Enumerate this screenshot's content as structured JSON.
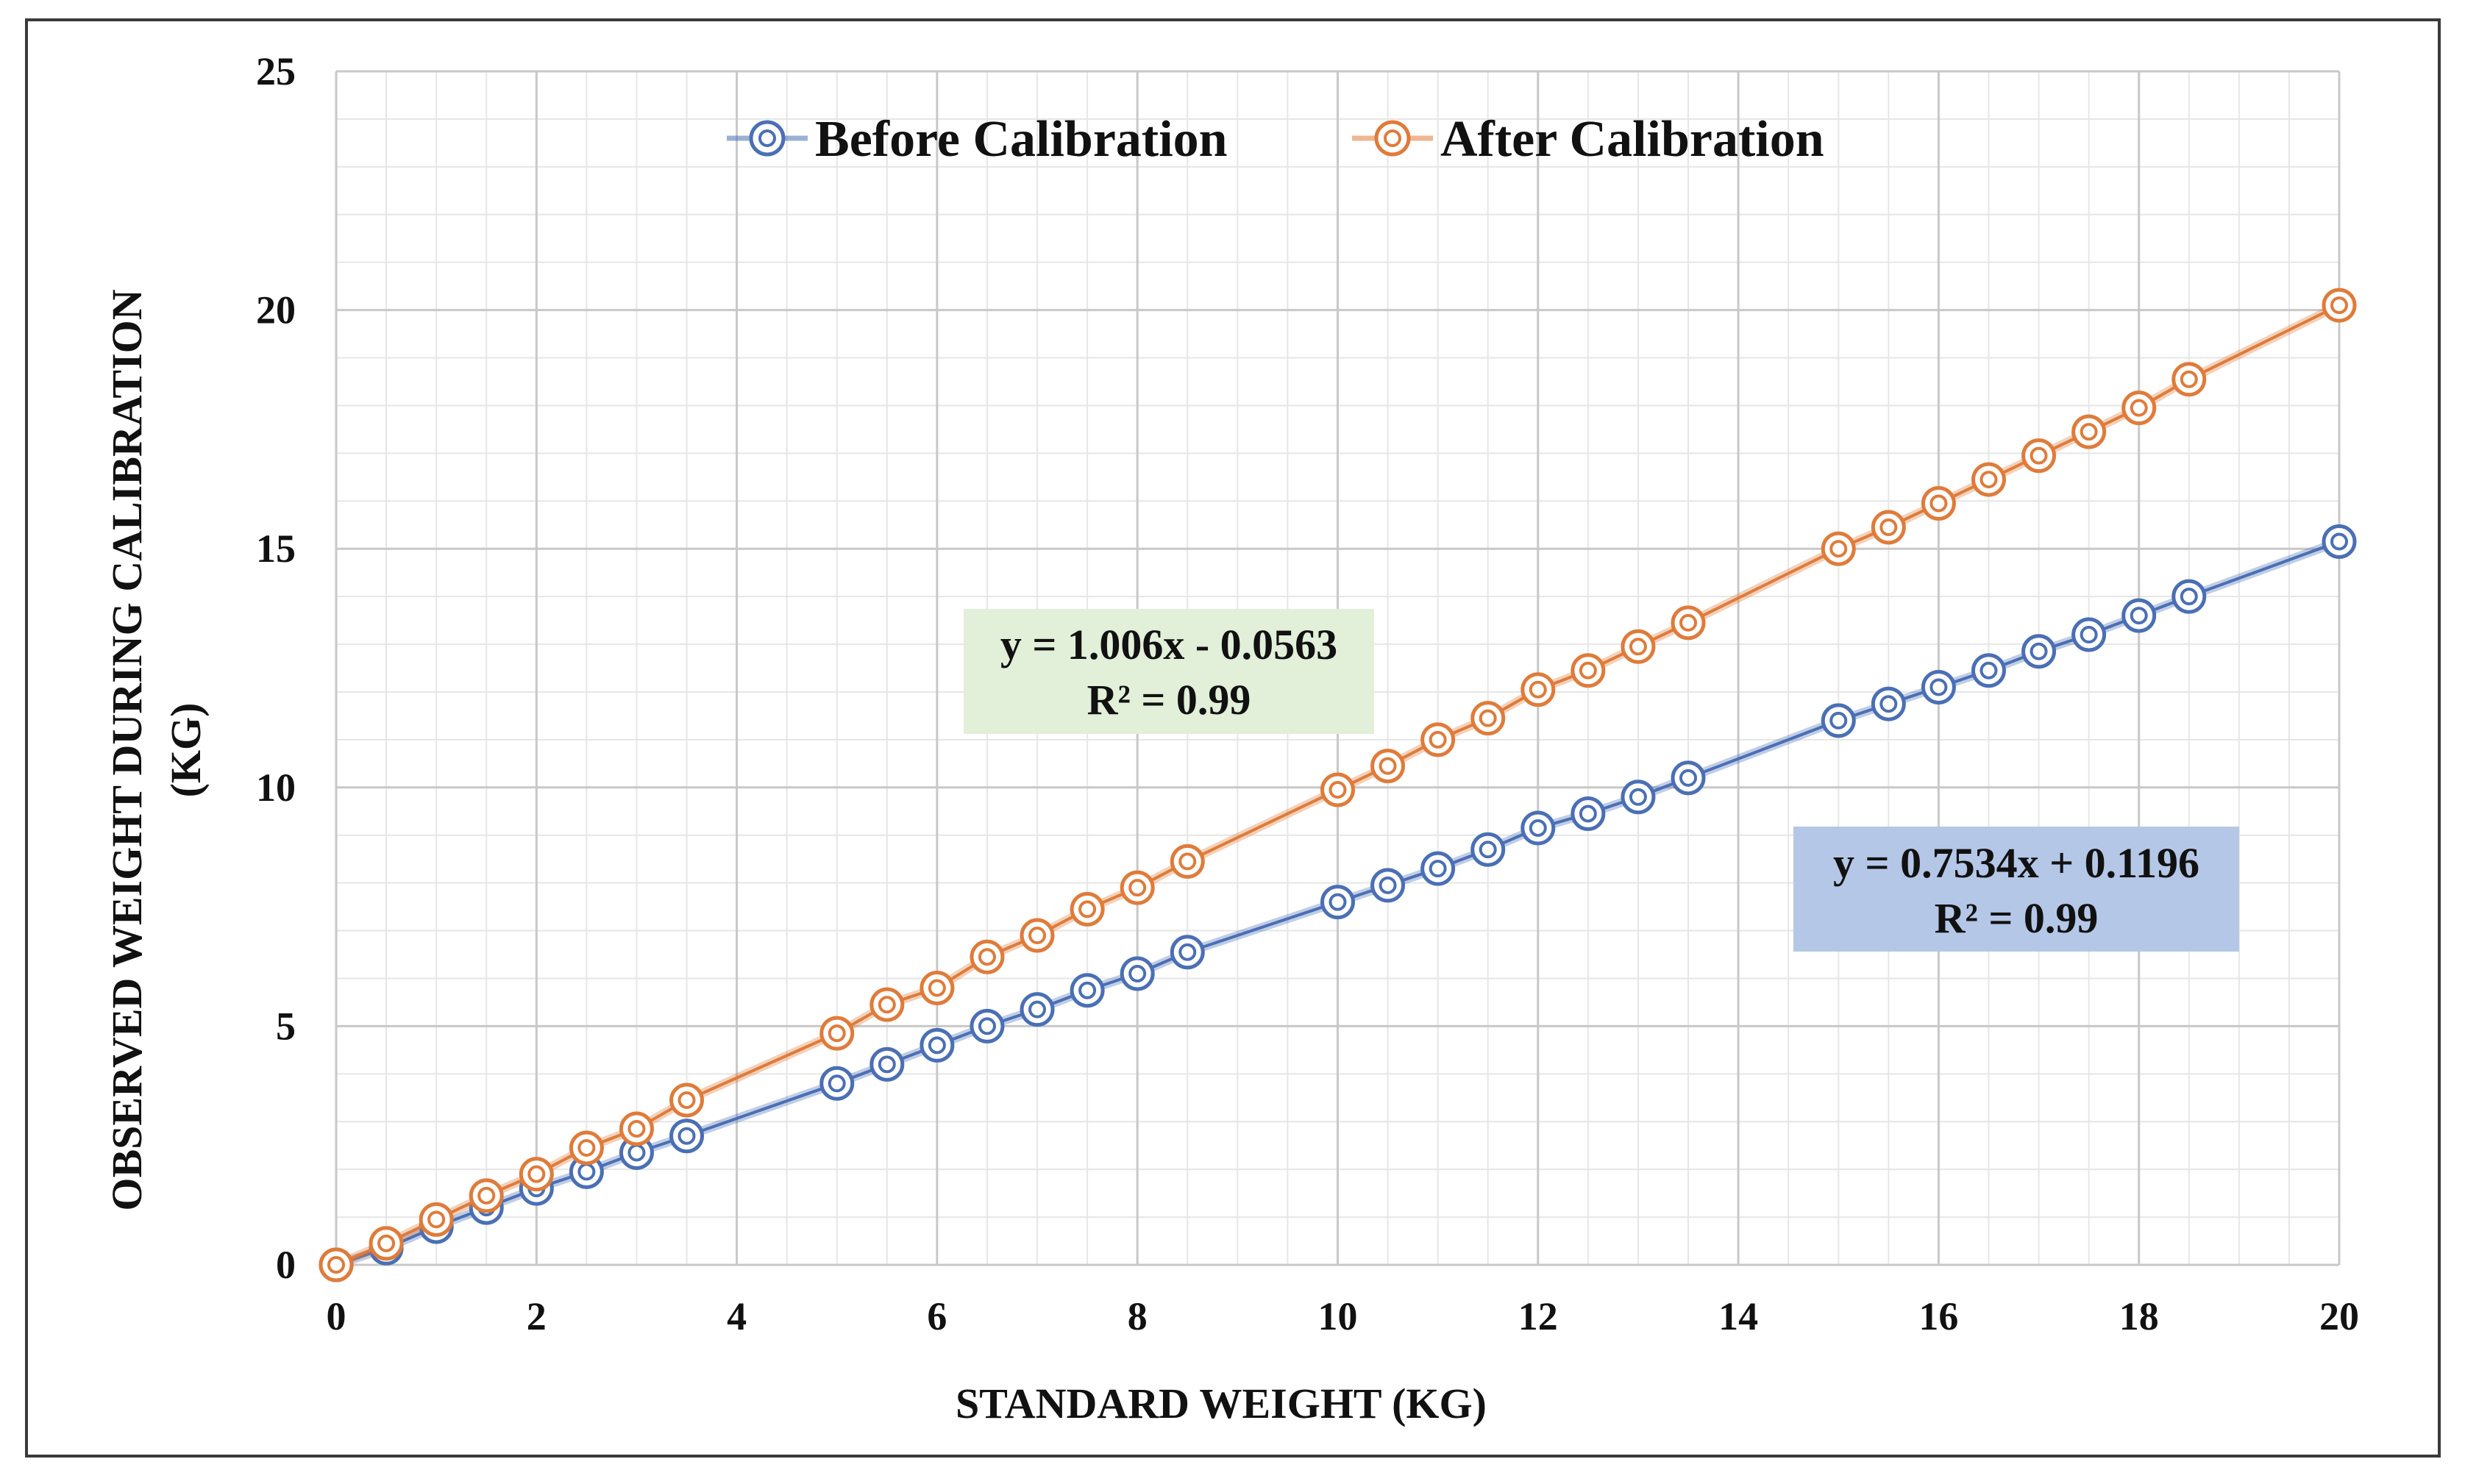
{
  "chart_data": {
    "type": "scatter",
    "xlabel": "STANDARD WEIGHT  (KG)",
    "ylabel_lines": [
      "OBSERVED WEIGHT  DURING CALIBRATION",
      "(KG)"
    ],
    "xlim": [
      0,
      20
    ],
    "ylim": [
      0,
      25
    ],
    "x_ticks": [
      0,
      2,
      4,
      6,
      8,
      10,
      12,
      14,
      16,
      18,
      20
    ],
    "y_ticks": [
      0,
      5,
      10,
      15,
      20,
      25
    ],
    "x_minor_step": 0.5,
    "y_minor_step": 1,
    "grid": true,
    "legend_position": "top-center",
    "series": [
      {
        "name": "Before Calibration",
        "color": "#4a6fb5",
        "x": [
          0,
          0.5,
          1,
          1.5,
          2,
          2.5,
          3,
          3.5,
          5,
          5.5,
          6,
          6.5,
          7,
          7.5,
          8,
          8.5,
          10,
          10.5,
          11,
          11.5,
          12,
          12.5,
          13,
          13.5,
          15,
          15.5,
          16,
          16.5,
          17,
          17.5,
          18,
          18.5,
          20
        ],
        "y": [
          0,
          0.35,
          0.8,
          1.2,
          1.6,
          1.95,
          2.35,
          2.7,
          3.8,
          4.2,
          4.6,
          5.0,
          5.35,
          5.75,
          6.1,
          6.55,
          7.6,
          7.95,
          8.3,
          8.7,
          9.15,
          9.45,
          9.8,
          10.2,
          11.4,
          11.75,
          12.1,
          12.45,
          12.85,
          13.2,
          13.6,
          14.0,
          15.15
        ]
      },
      {
        "name": "After Calibration",
        "color": "#e07b39",
        "x": [
          0,
          0.5,
          1,
          1.5,
          2,
          2.5,
          3,
          3.5,
          5,
          5.5,
          6,
          6.5,
          7,
          7.5,
          8,
          8.5,
          10,
          10.5,
          11,
          11.5,
          12,
          12.5,
          13,
          13.5,
          15,
          15.5,
          16,
          16.5,
          17,
          17.5,
          18,
          18.5,
          20
        ],
        "y": [
          0,
          0.45,
          0.95,
          1.45,
          1.9,
          2.45,
          2.85,
          3.45,
          4.85,
          5.45,
          5.8,
          6.45,
          6.9,
          7.45,
          7.9,
          8.45,
          9.95,
          10.45,
          11.0,
          11.45,
          12.05,
          12.45,
          12.95,
          13.45,
          15.0,
          15.45,
          15.95,
          16.45,
          16.95,
          17.45,
          17.95,
          18.55,
          20.1
        ]
      }
    ],
    "annotations": [
      {
        "name": "after-equation",
        "lines": [
          "y = 1.006x - 0.0563",
          "R² = 0.99"
        ],
        "background": "#e2efd9"
      },
      {
        "name": "before-equation",
        "lines": [
          "y = 0.7534x + 0.1196",
          "R² = 0.99"
        ],
        "background": "#b4c7e7"
      }
    ],
    "colors": {
      "major_grid": "#c8c8c8",
      "minor_grid": "#e6e6e6",
      "frame": "#3a3a3a"
    }
  }
}
